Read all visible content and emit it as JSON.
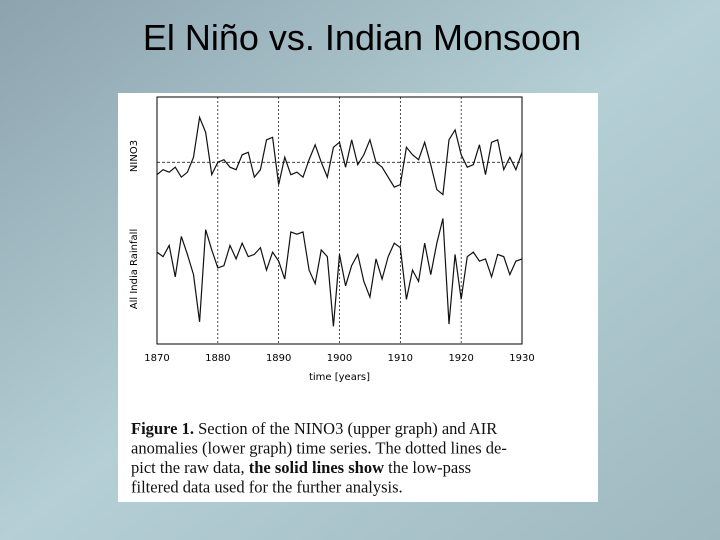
{
  "title": "El Niño vs. Indian Monsoon",
  "chart_data": [
    {
      "type": "line",
      "ylabel": "NINO3",
      "color": "#111111",
      "zero_line": 0,
      "xlim": [
        1870,
        1930
      ],
      "ylim": [
        -2,
        2.5
      ],
      "x": [
        1870,
        1871,
        1872,
        1873,
        1874,
        1875,
        1876,
        1877,
        1878,
        1879,
        1880,
        1881,
        1882,
        1883,
        1884,
        1885,
        1886,
        1887,
        1888,
        1889,
        1890,
        1891,
        1892,
        1893,
        1894,
        1895,
        1896,
        1897,
        1898,
        1899,
        1900,
        1901,
        1902,
        1903,
        1904,
        1905,
        1906,
        1907,
        1908,
        1909,
        1910,
        1911,
        1912,
        1913,
        1914,
        1915,
        1916,
        1917,
        1918,
        1919,
        1920,
        1921,
        1922,
        1923,
        1924,
        1925,
        1926,
        1927,
        1928,
        1929,
        1930
      ],
      "values": [
        -0.5,
        -0.3,
        -0.4,
        -0.2,
        -0.6,
        -0.4,
        0.2,
        1.8,
        1.2,
        -0.5,
        0.0,
        0.1,
        -0.2,
        -0.3,
        0.3,
        0.4,
        -0.6,
        -0.3,
        0.9,
        1.0,
        -0.9,
        0.2,
        -0.5,
        -0.4,
        -0.6,
        0.1,
        0.7,
        0.0,
        -0.6,
        0.6,
        0.8,
        -0.2,
        0.9,
        -0.1,
        0.3,
        0.9,
        0.0,
        -0.2,
        -0.6,
        -1.0,
        -0.9,
        0.6,
        0.3,
        0.1,
        0.8,
        -0.1,
        -1.1,
        -1.3,
        0.9,
        1.3,
        0.3,
        -0.2,
        -0.1,
        0.7,
        -0.5,
        0.8,
        0.9,
        -0.3,
        0.2,
        -0.3,
        0.4
      ]
    },
    {
      "type": "line",
      "ylabel": "All India Rainfall",
      "color": "#111111",
      "xlabel": "time [years]",
      "xlim": [
        1870,
        1930
      ],
      "ylim": [
        -3.5,
        3
      ],
      "xticks": [
        1870,
        1880,
        1890,
        1900,
        1910,
        1920,
        1930
      ],
      "grid": true,
      "x": [
        1870,
        1871,
        1872,
        1873,
        1874,
        1875,
        1876,
        1877,
        1878,
        1879,
        1880,
        1881,
        1882,
        1883,
        1884,
        1885,
        1886,
        1887,
        1888,
        1889,
        1890,
        1891,
        1892,
        1893,
        1894,
        1895,
        1896,
        1897,
        1898,
        1899,
        1900,
        1901,
        1902,
        1903,
        1904,
        1905,
        1906,
        1907,
        1908,
        1909,
        1910,
        1911,
        1912,
        1913,
        1914,
        1915,
        1916,
        1917,
        1918,
        1919,
        1920,
        1921,
        1922,
        1923,
        1924,
        1925,
        1926,
        1927,
        1928,
        1929,
        1930
      ],
      "values": [
        0.5,
        0.3,
        0.8,
        -0.6,
        1.2,
        0.4,
        -0.5,
        -2.6,
        1.5,
        0.6,
        -0.2,
        -0.1,
        0.8,
        0.2,
        0.9,
        0.3,
        0.4,
        0.7,
        -0.3,
        0.5,
        0.1,
        -0.7,
        1.4,
        1.3,
        1.4,
        -0.3,
        -0.9,
        0.6,
        0.3,
        -2.8,
        0.4,
        -1.0,
        -0.1,
        0.4,
        -0.8,
        -1.5,
        0.2,
        -0.7,
        0.3,
        0.9,
        0.7,
        -1.6,
        -0.3,
        -0.8,
        0.9,
        -0.5,
        0.9,
        2.0,
        -2.7,
        0.4,
        -1.6,
        0.3,
        0.5,
        0.1,
        0.2,
        -0.6,
        0.4,
        0.3,
        -0.5,
        0.1,
        0.2
      ]
    }
  ],
  "caption": [
    [
      {
        "text": "Figure 1.",
        "bold": true
      },
      {
        "text": " Section of the NINO3 (upper graph) and AIR",
        "bold": false
      }
    ],
    [
      {
        "text": "anomalies (lower graph) time series. The dotted lines de-",
        "bold": false
      }
    ],
    [
      {
        "text": "pict the raw data, ",
        "bold": false
      },
      {
        "text": "the solid lines show",
        "bold": true
      },
      {
        "text": " the low-pass",
        "bold": false
      }
    ],
    [
      {
        "text": "filtered data used for the further analysis.",
        "bold": false
      }
    ]
  ]
}
